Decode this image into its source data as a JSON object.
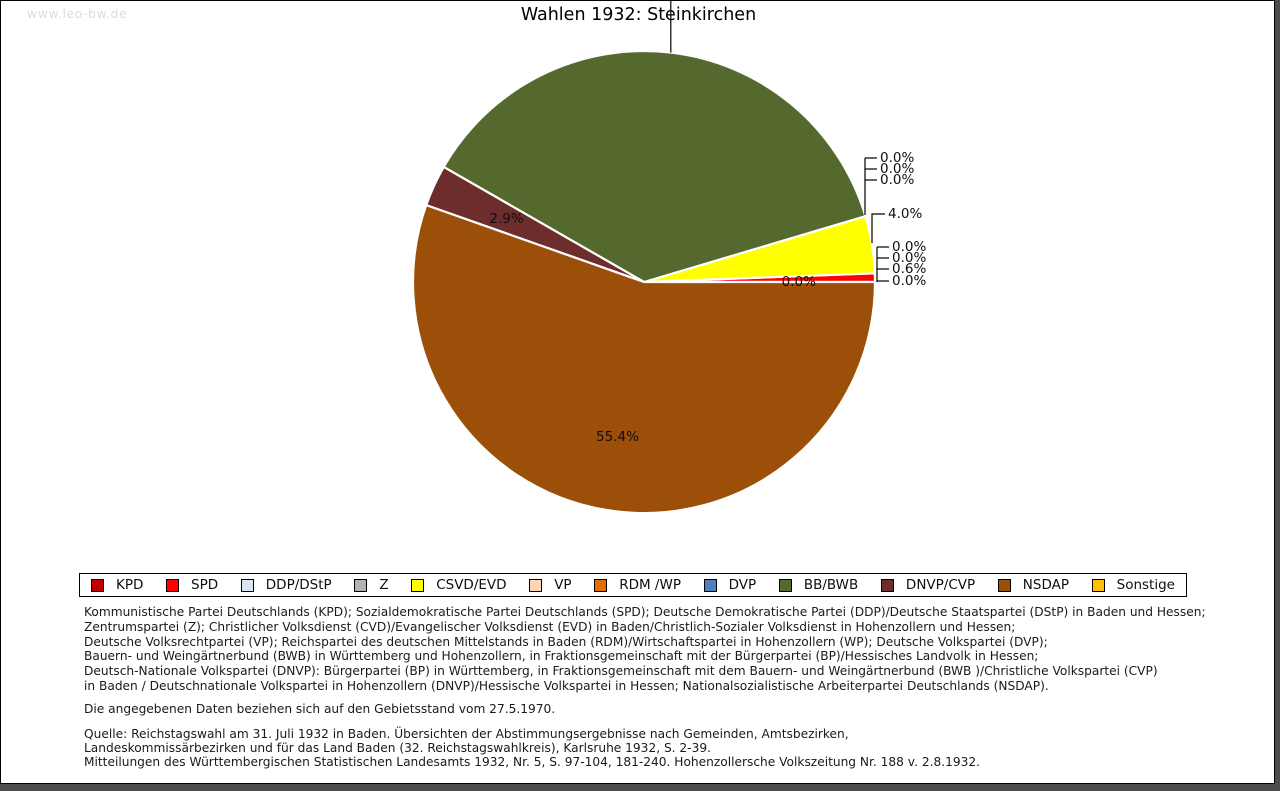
{
  "watermark": "www.leo-bw.de",
  "title": "Wahlen 1932: Steinkirchen",
  "chart_data": {
    "type": "pie",
    "title": "Wahlen 1932: Steinkirchen",
    "start_angle_deg": 0,
    "direction": "counterclockwise",
    "legend_position": "bottom",
    "slices": [
      {
        "party": "KPD",
        "value": 0.0,
        "label": "0.0%",
        "color": "#c00000"
      },
      {
        "party": "SPD",
        "value": 0.6,
        "label": "0.6%",
        "color": "#ff0000"
      },
      {
        "party": "DDP/DStP",
        "value": 0.0,
        "label": "0.0%",
        "color": "#dce6f1"
      },
      {
        "party": "Z",
        "value": 0.0,
        "label": "0.0%",
        "color": "#b2b2b2"
      },
      {
        "party": "CSVD/EVD",
        "value": 4.0,
        "label": "4.0%",
        "color": "#ffff00"
      },
      {
        "party": "VP",
        "value": 0.0,
        "label": "0.0%",
        "color": "#fcd5b4"
      },
      {
        "party": "RDM /WP",
        "value": 0.0,
        "label": "0.0%",
        "color": "#e36c09"
      },
      {
        "party": "DVP",
        "value": 0.0,
        "label": "0.0%",
        "color": "#4f81bd"
      },
      {
        "party": "BB/BWB",
        "value": 37.1,
        "label": "",
        "color": "#55682d",
        "label_cut_off_at_top": true
      },
      {
        "party": "DNVP/CVP",
        "value": 2.9,
        "label": "2.9%",
        "color": "#6e2d2d"
      },
      {
        "party": "NSDAP",
        "value": 55.4,
        "label": "55.4%",
        "color": "#9b4f08"
      },
      {
        "party": "Sonstige",
        "value": 0.0,
        "label": "0.0%",
        "color": "#ffc000"
      }
    ]
  },
  "notes": {
    "party_definitions": [
      "Kommunistische Partei Deutschlands (KPD); Sozialdemokratische Partei Deutschlands (SPD); Deutsche Demokratische Partei (DDP)/Deutsche Staatspartei (DStP) in Baden und Hessen;",
      "Zentrumspartei (Z); Christlicher Volksdienst (CVD)/Evangelischer Volksdienst (EVD) in Baden/Christlich-Sozialer Volksdienst in Hohenzollern und Hessen;",
      "Deutsche Volksrechtpartei (VP); Reichspartei des deutschen Mittelstands in Baden (RDM)/Wirtschaftspartei in Hohenzollern (WP); Deutsche Volkspartei (DVP);",
      "Bauern- und Weingärtnerbund (BWB) in Württemberg und Hohenzollern, in Fraktionsgemeinschaft mit der Bürgerpartei (BP)/Hessisches Landvolk in Hessen;",
      "Deutsch-Nationale Volkspartei (DNVP): Bürgerpartei (BP) in Württemberg, in Fraktionsgemeinschaft mit dem Bauern- und Weingärtnerbund (BWB )/Christliche Volkspartei (CVP)",
      "in Baden / Deutschnationale Volkspartei in Hohenzollern (DNVP)/Hessische Volkspartei in Hessen; Nationalsozialistische Arbeiterpartei Deutschlands (NSDAP)."
    ],
    "gebietsstand": "Die angegebenen Daten beziehen sich auf den Gebietsstand vom 27.5.1970.",
    "quelle": [
      "Quelle: Reichstagswahl am 31. Juli 1932 in Baden. Übersichten der Abstimmungsergebnisse nach Gemeinden, Amtsbezirken,",
      "Landeskommissärbezirken und für das Land Baden (32. Reichstagswahlkreis), Karlsruhe 1932, S. 2-39.",
      "Mitteilungen des Württembergischen Statistischen Landesamts 1932, Nr. 5, S. 97-104, 181-240. Hohenzollersche Volkszeitung Nr. 188 v. 2.8.1932."
    ]
  }
}
